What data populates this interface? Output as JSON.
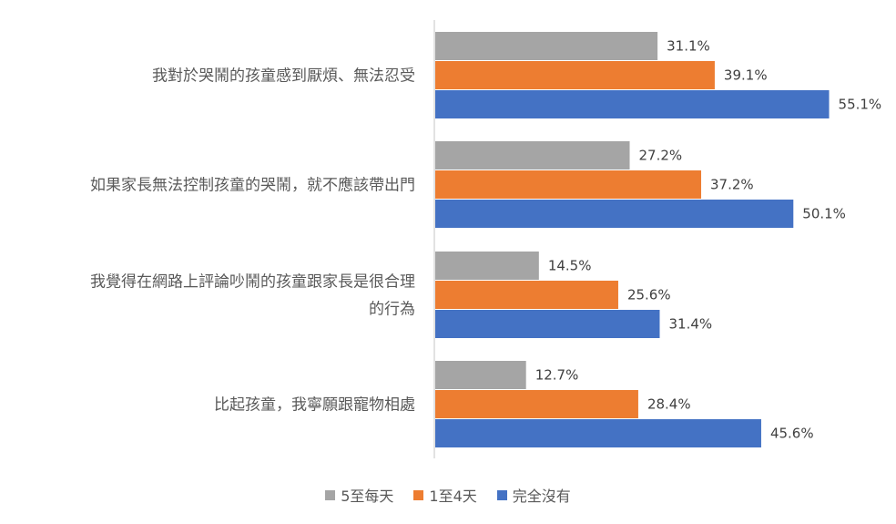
{
  "chart_data": {
    "type": "bar",
    "orientation": "horizontal",
    "title": "",
    "xlabel": "",
    "ylabel": "",
    "xlim": [
      0,
      60
    ],
    "grid": false,
    "legend_position": "bottom",
    "categories": [
      [
        "我對於哭鬧的孩童感到厭煩、無法忍受"
      ],
      [
        "如果家長無法控制孩童的哭鬧，就不應該帶出門"
      ],
      [
        "我覺得在網路上評論吵鬧的孩童跟家長是很合理",
        "的行為"
      ],
      [
        "比起孩童，我寧願跟寵物相處"
      ]
    ],
    "series": [
      {
        "name": "5至每天",
        "color": "#A5A5A5",
        "values": [
          31.1,
          27.2,
          14.5,
          12.7
        ],
        "labels": [
          "31.1%",
          "27.2%",
          "14.5%",
          "12.7%"
        ]
      },
      {
        "name": "1至4天",
        "color": "#ED7D31",
        "values": [
          39.1,
          37.2,
          25.6,
          28.4
        ],
        "labels": [
          "39.1%",
          "37.2%",
          "25.6%",
          "28.4%"
        ]
      },
      {
        "name": "完全沒有",
        "color": "#4472C4",
        "values": [
          55.1,
          50.1,
          31.4,
          45.6
        ],
        "labels": [
          "55.1%",
          "50.1%",
          "31.4%",
          "45.6%"
        ]
      }
    ]
  }
}
